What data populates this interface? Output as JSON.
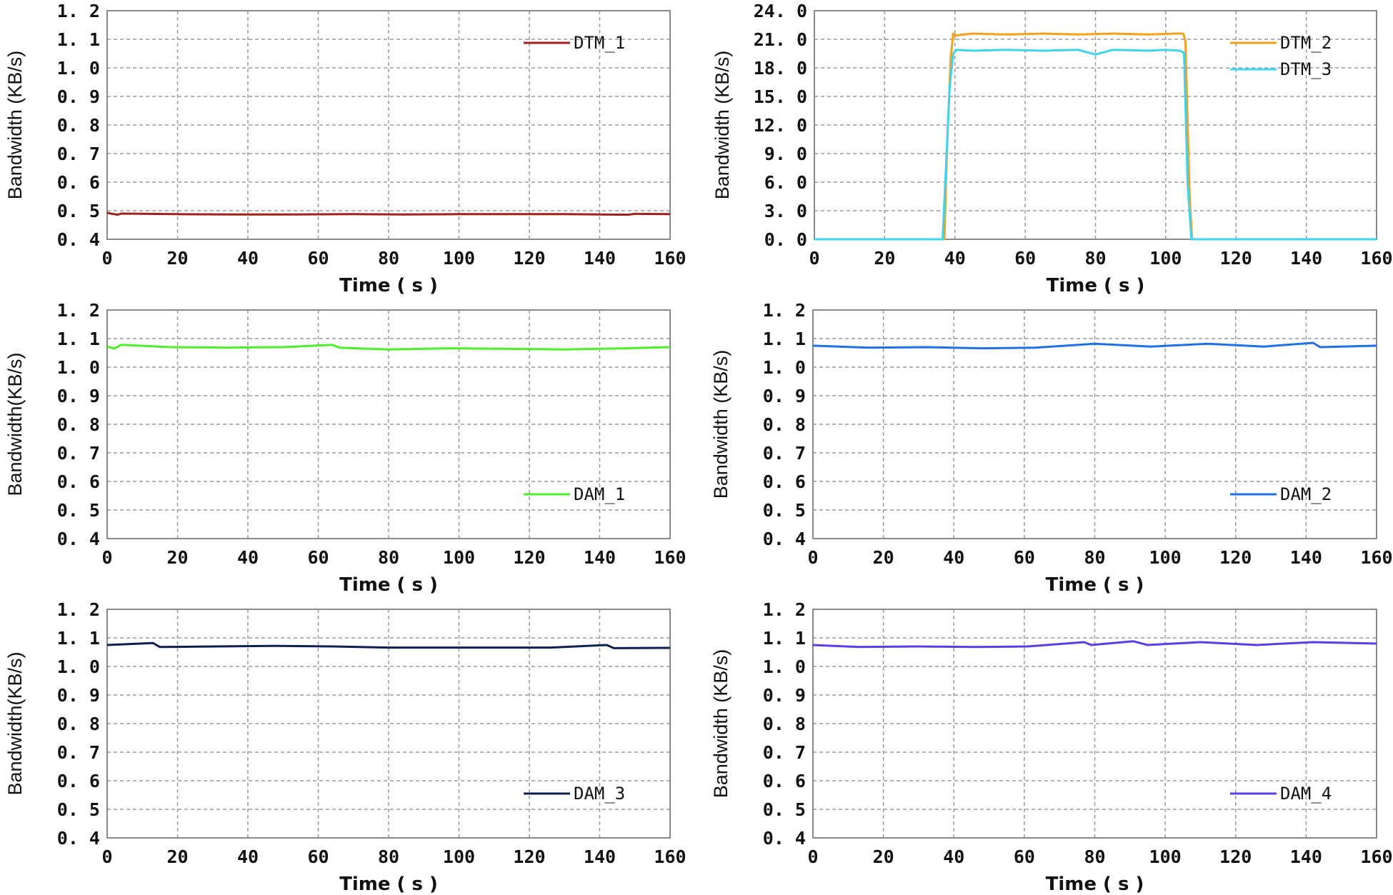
{
  "chart_data": [
    {
      "type": "line",
      "xlabel": "Time ( s )",
      "ylabel": "Bandwidth (KB/s)",
      "xlim": [
        0,
        160
      ],
      "ylim": [
        0.4,
        1.2
      ],
      "xticks": [
        "0",
        "20",
        "40",
        "60",
        "80",
        "100",
        "120",
        "140",
        "160"
      ],
      "yticks": [
        "0. 4",
        "0. 5",
        "0. 6",
        "0. 7",
        "0. 8",
        "0. 9",
        "1. 0",
        "1. 1",
        "1. 2"
      ],
      "grid": true,
      "legend_position": "top-right",
      "series": [
        {
          "name": "DTM_1",
          "color": "#a01f1f",
          "x": [
            0,
            1,
            3,
            4,
            20,
            36,
            52,
            70,
            84,
            100,
            115,
            130,
            148,
            150,
            160
          ],
          "values": [
            0.493,
            0.49,
            0.486,
            0.49,
            0.488,
            0.487,
            0.487,
            0.488,
            0.487,
            0.488,
            0.488,
            0.488,
            0.486,
            0.489,
            0.488
          ]
        }
      ]
    },
    {
      "type": "line",
      "xlabel": "Time ( s )",
      "ylabel": "Bandwidth (KB/s)",
      "xlim": [
        0,
        160
      ],
      "ylim": [
        0,
        24
      ],
      "xticks": [
        "0",
        "20",
        "40",
        "60",
        "80",
        "100",
        "120",
        "140",
        "160"
      ],
      "yticks": [
        "0. 0",
        "3. 0",
        "6. 0",
        "9. 0",
        "12. 0",
        "15. 0",
        "18. 0",
        "21. 0",
        "24. 0"
      ],
      "grid": true,
      "legend_position": "top-right",
      "series": [
        {
          "name": "DTM_2",
          "color": "#f5a01a",
          "x": [
            0,
            37,
            37.8,
            38.8,
            39.5,
            40,
            45,
            55,
            65,
            75,
            85,
            95,
            103,
            105,
            105.6,
            106.8,
            107.5,
            160
          ],
          "values": [
            0,
            0,
            10,
            19,
            21.6,
            21.4,
            21.6,
            21.5,
            21.6,
            21.5,
            21.6,
            21.5,
            21.6,
            21.6,
            20.8,
            4.5,
            0,
            0
          ]
        },
        {
          "name": "DTM_3",
          "color": "#3fd3f0",
          "x": [
            0,
            36.5,
            37.5,
            38.5,
            39.5,
            40.5,
            45,
            55,
            65,
            75,
            80,
            85,
            95,
            100,
            104,
            105.2,
            106.2,
            107.3,
            160
          ],
          "values": [
            0,
            0,
            8,
            16,
            19.5,
            19.9,
            19.8,
            19.9,
            19.8,
            19.9,
            19.4,
            19.9,
            19.8,
            19.9,
            19.8,
            19.6,
            6,
            0,
            0
          ]
        }
      ]
    },
    {
      "type": "line",
      "xlabel": "Time ( s )",
      "ylabel": "Bandwidth(KB/s)",
      "xlim": [
        0,
        160
      ],
      "ylim": [
        0.4,
        1.2
      ],
      "xticks": [
        "0",
        "20",
        "40",
        "60",
        "80",
        "100",
        "120",
        "140",
        "160"
      ],
      "yticks": [
        "0. 4",
        "0. 5",
        "0. 6",
        "0. 7",
        "0. 8",
        "0. 9",
        "1. 0",
        "1. 1",
        "1. 2"
      ],
      "grid": true,
      "legend_position": "bottom-right",
      "series": [
        {
          "name": "DAM_1",
          "color": "#4def2a",
          "x": [
            0,
            2,
            4,
            18,
            34,
            50,
            64,
            66,
            80,
            97,
            114,
            130,
            147,
            160
          ],
          "values": [
            1.072,
            1.065,
            1.078,
            1.07,
            1.068,
            1.07,
            1.078,
            1.068,
            1.062,
            1.066,
            1.064,
            1.062,
            1.066,
            1.07
          ]
        }
      ]
    },
    {
      "type": "line",
      "xlabel": "Time ( s )",
      "ylabel": "Bandwidth (KB/s)",
      "xlim": [
        0,
        160
      ],
      "ylim": [
        0.4,
        1.2
      ],
      "xticks": [
        "0",
        "20",
        "40",
        "60",
        "80",
        "100",
        "120",
        "140",
        "160"
      ],
      "yticks": [
        "0. 4",
        "0. 5",
        "0. 6",
        "0. 7",
        "0. 8",
        "0. 9",
        "1. 0",
        "1. 1",
        "1. 2"
      ],
      "grid": true,
      "legend_position": "bottom-right",
      "series": [
        {
          "name": "DAM_2",
          "color": "#1f6fe6",
          "x": [
            0,
            16,
            32,
            48,
            63,
            80,
            96,
            112,
            128,
            142,
            144,
            160
          ],
          "values": [
            1.075,
            1.068,
            1.07,
            1.066,
            1.068,
            1.082,
            1.072,
            1.082,
            1.072,
            1.085,
            1.07,
            1.075
          ]
        }
      ]
    },
    {
      "type": "line",
      "xlabel": "Time ( s )",
      "ylabel": "Bandwidth(KB/s)",
      "xlim": [
        0,
        160
      ],
      "ylim": [
        0.4,
        1.2
      ],
      "xticks": [
        "0",
        "20",
        "40",
        "60",
        "80",
        "100",
        "120",
        "140",
        "160"
      ],
      "yticks": [
        "0. 4",
        "0. 5",
        "0. 6",
        "0. 7",
        "0. 8",
        "0. 9",
        "1. 0",
        "1. 1",
        "1. 2"
      ],
      "grid": true,
      "legend_position": "bottom-right",
      "series": [
        {
          "name": "DAM_3",
          "color": "#0f1f4f",
          "x": [
            0,
            13,
            15,
            31,
            48,
            64,
            80,
            95,
            112,
            126,
            142,
            144,
            160
          ],
          "values": [
            1.075,
            1.082,
            1.068,
            1.07,
            1.072,
            1.07,
            1.066,
            1.066,
            1.066,
            1.066,
            1.075,
            1.064,
            1.065
          ]
        }
      ]
    },
    {
      "type": "line",
      "xlabel": "Time ( s )",
      "ylabel": "Bandwidth (KB/s)",
      "xlim": [
        0,
        160
      ],
      "ylim": [
        0.4,
        1.2
      ],
      "xticks": [
        "0",
        "20",
        "40",
        "60",
        "80",
        "100",
        "120",
        "140",
        "160"
      ],
      "yticks": [
        "0. 4",
        "0. 5",
        "0. 6",
        "0. 7",
        "0. 8",
        "0. 9",
        "1. 0",
        "1. 1",
        "1. 2"
      ],
      "grid": true,
      "legend_position": "bottom-right",
      "series": [
        {
          "name": "DAM_4",
          "color": "#5b3ce6",
          "x": [
            0,
            13,
            29,
            46,
            61,
            77,
            79,
            91,
            95,
            110,
            126,
            142,
            160
          ],
          "values": [
            1.075,
            1.068,
            1.07,
            1.068,
            1.07,
            1.085,
            1.075,
            1.088,
            1.075,
            1.085,
            1.075,
            1.085,
            1.08
          ]
        }
      ]
    }
  ]
}
